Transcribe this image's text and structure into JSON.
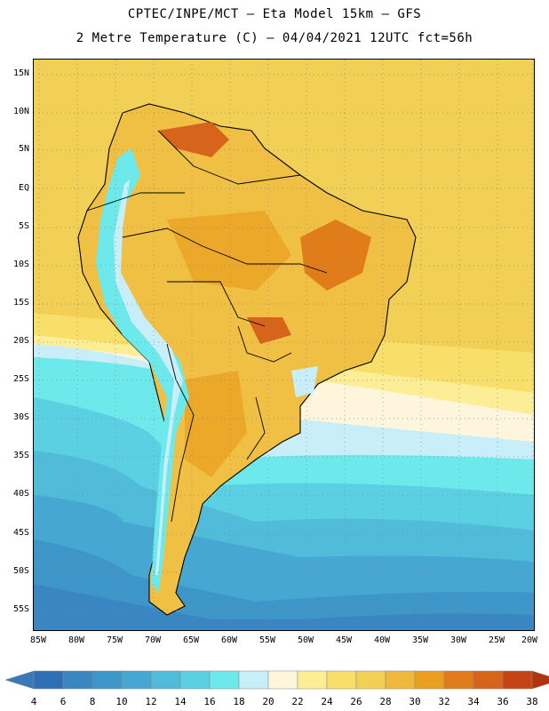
{
  "header": {
    "title_line1": "CPTEC/INPE/MCT –  Eta Model 15km – GFS",
    "title_line2": "2 Metre Temperature (C) – 04/04/2021 12UTC fct=56h"
  },
  "map": {
    "lat_ticks": [
      "15N",
      "10N",
      "5N",
      "EQ",
      "5S",
      "10S",
      "15S",
      "20S",
      "25S",
      "30S",
      "35S",
      "40S",
      "45S",
      "50S",
      "55S"
    ],
    "lon_ticks": [
      "85W",
      "80W",
      "75W",
      "70W",
      "65W",
      "60W",
      "55W",
      "50W",
      "45W",
      "40W",
      "35W",
      "30W",
      "25W",
      "20W"
    ]
  },
  "colorbar": {
    "labels": [
      "4",
      "6",
      "8",
      "10",
      "12",
      "14",
      "16",
      "18",
      "20",
      "22",
      "24",
      "26",
      "28",
      "30",
      "32",
      "34",
      "36",
      "38"
    ],
    "colors": [
      "#3a78b8",
      "#2f6eb5",
      "#3a86c3",
      "#3e96c8",
      "#46a8d2",
      "#50bcda",
      "#5bd0e2",
      "#6de9ec",
      "#c8eefa",
      "#fdf6dc",
      "#fcee96",
      "#f8df6a",
      "#f2cf55",
      "#eeb93a",
      "#eb9f1e",
      "#e07d1a",
      "#d8631a",
      "#c64414",
      "#b0340e"
    ]
  }
}
